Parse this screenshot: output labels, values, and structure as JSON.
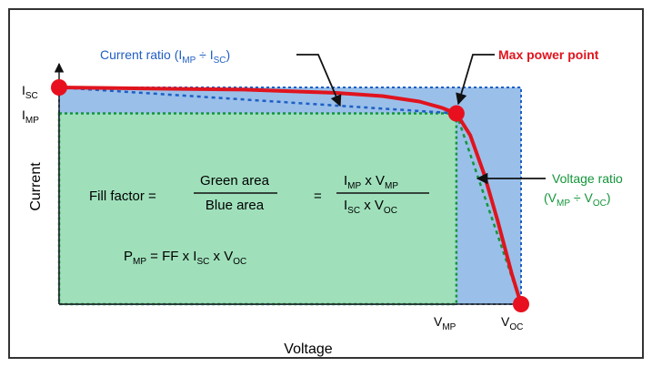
{
  "chart_data": {
    "type": "line",
    "title": "",
    "xlabel": "Voltage",
    "ylabel": "Current",
    "xlim": [
      0,
      1
    ],
    "ylim": [
      0,
      1
    ],
    "axis_ticks": {
      "x": [
        {
          "base": "V",
          "sub": "MP",
          "value": 0.86
        },
        {
          "base": "V",
          "sub": "OC",
          "value": 1.0
        }
      ],
      "y": [
        {
          "base": "I",
          "sub": "SC",
          "value": 1.0
        },
        {
          "base": "I",
          "sub": "MP",
          "value": 0.88
        }
      ]
    },
    "series": [
      {
        "name": "",
        "x": [
          0,
          0.2,
          0.4,
          0.6,
          0.7,
          0.78,
          0.83,
          0.86,
          0.89,
          0.92,
          0.95,
          0.98,
          1.0
        ],
        "y": [
          1.0,
          0.995,
          0.99,
          0.975,
          0.96,
          0.935,
          0.905,
          0.88,
          0.78,
          0.6,
          0.38,
          0.14,
          0.0
        ]
      }
    ],
    "points": [
      {
        "x": 0,
        "y": 1.0
      },
      {
        "x": 0.86,
        "y": 0.88
      },
      {
        "x": 1.0,
        "y": 0.0
      }
    ],
    "regions": [
      {
        "name": "blue",
        "x": [
          0,
          1.0
        ],
        "y": [
          0,
          1.0
        ]
      },
      {
        "name": "green",
        "x": [
          0,
          0.86
        ],
        "y": [
          0,
          0.88
        ]
      }
    ],
    "colors": {
      "curve": "#e0141e",
      "point": "#e8101e",
      "blue_fill": "#9ac0ea",
      "blue_line": "#1f5fc4",
      "green_fill": "#9fe0bb",
      "green_line": "#14953a",
      "axis": "#222222",
      "label_blue": "#1f5fc4",
      "label_red": "#e0141e",
      "label_green": "#14953a"
    },
    "annotations": {
      "current_ratio": {
        "pre": "Current ratio (I",
        "sub1": "MP",
        "mid": " ÷ I",
        "sub2": "SC",
        "post": ")"
      },
      "max_power_point": "Max power point",
      "voltage_ratio_line1": "Voltage ratio",
      "voltage_ratio_line2": {
        "pre": "(V",
        "sub1": "MP",
        "mid": " ÷ V",
        "sub2": "OC",
        "post": ")"
      }
    },
    "formulas": {
      "fill_factor_label": "Fill factor =",
      "frac1_top": "Green area",
      "frac1_bottom": "Blue area",
      "equals": "=",
      "frac2_top": {
        "a": "I",
        "a_sub": "MP",
        "op": " x V",
        "b_sub": "MP"
      },
      "frac2_bottom": {
        "a": "I",
        "a_sub": "SC",
        "op": " x V",
        "b_sub": "OC"
      },
      "pmp": {
        "a": "P",
        "a_sub": "MP",
        "mid": " = FF x I",
        "b_sub": "SC",
        "op": " x V",
        "c_sub": "OC"
      }
    }
  }
}
